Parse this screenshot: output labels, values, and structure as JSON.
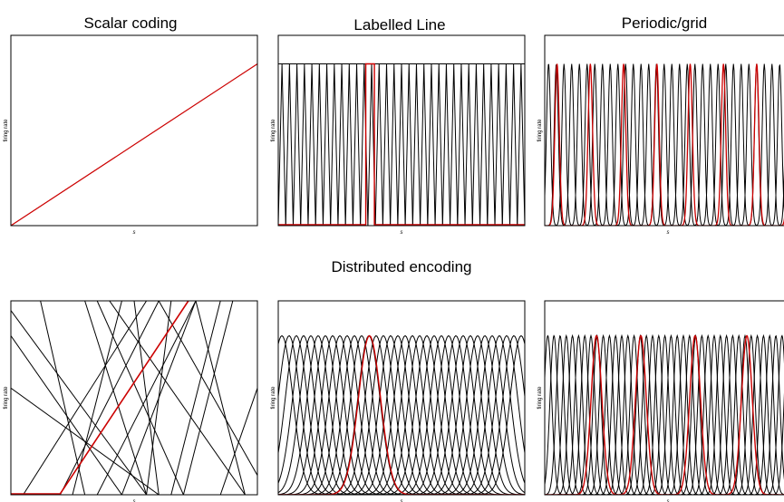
{
  "figure": {
    "section_title": "Distributed encoding",
    "colors": {
      "line": "#000000",
      "highlight": "#cc0000",
      "background": "#ffffff"
    },
    "panels": [
      {
        "id": "scalar",
        "title": "Scalar coding",
        "xlabel": "s",
        "ylabel": "firing rate",
        "type": "line"
      },
      {
        "id": "labelled",
        "title": "Labelled Line",
        "xlabel": "s",
        "ylabel": "firing rate",
        "type": "narrow-tuning"
      },
      {
        "id": "periodic",
        "title": "Periodic/grid",
        "xlabel": "s",
        "ylabel": "firing rate",
        "type": "periodic-tuning"
      },
      {
        "id": "random",
        "title": "",
        "xlabel": "s",
        "ylabel": "firing rate",
        "type": "random-lines"
      },
      {
        "id": "gaussian",
        "title": "",
        "xlabel": "s",
        "ylabel": "firing rate",
        "type": "gaussian-tuning"
      },
      {
        "id": "mixed",
        "title": "",
        "xlabel": "s",
        "ylabel": "firing rate",
        "type": "multi-peak-tuning"
      }
    ]
  }
}
